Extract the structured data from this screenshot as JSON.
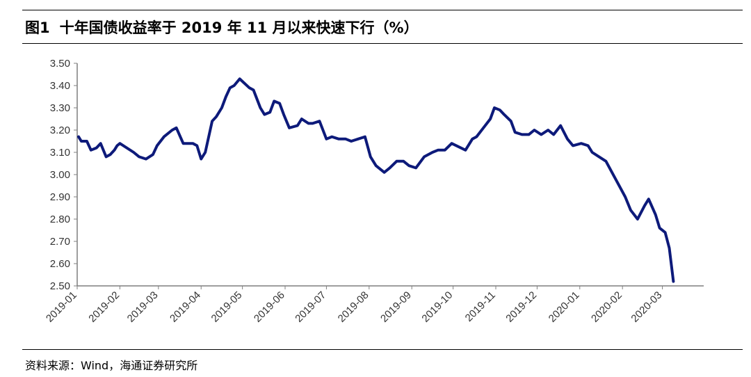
{
  "header": {
    "figure_number": "图1",
    "title": "十年国债收益率于 2019 年 11 月以来快速下行（%）"
  },
  "footer": {
    "source": "资料来源：Wind，海通证券研究所"
  },
  "chart_data": {
    "type": "line",
    "title": "十年国债收益率于 2019 年 11 月以来快速下行（%）",
    "xlabel": "",
    "ylabel": "",
    "ylim": [
      2.5,
      3.5
    ],
    "y_ticks": [
      "3.50",
      "3.40",
      "3.30",
      "3.20",
      "3.10",
      "3.00",
      "2.90",
      "2.80",
      "2.70",
      "2.60",
      "2.50"
    ],
    "x_ticks": [
      "2019-01",
      "2019-02",
      "2019-03",
      "2019-04",
      "2019-05",
      "2019-06",
      "2019-07",
      "2019-08",
      "2019-09",
      "2019-10",
      "2019-11",
      "2019-12",
      "2020-01",
      "2020-02",
      "2020-03"
    ],
    "grid": false,
    "legend": "none",
    "color": "#0d1a7a",
    "series": [
      {
        "x": [
          "2019-01-02",
          "2019-01-04",
          "2019-01-08",
          "2019-01-11",
          "2019-01-15",
          "2019-01-18",
          "2019-01-22",
          "2019-01-25",
          "2019-01-28",
          "2019-01-30",
          "2019-02-01",
          "2019-02-11",
          "2019-02-15",
          "2019-02-20",
          "2019-02-25",
          "2019-02-28",
          "2019-03-05",
          "2019-03-11",
          "2019-03-14",
          "2019-03-19",
          "2019-03-22",
          "2019-03-26",
          "2019-03-29",
          "2019-04-01",
          "2019-04-04",
          "2019-04-09",
          "2019-04-12",
          "2019-04-16",
          "2019-04-19",
          "2019-04-22",
          "2019-04-25",
          "2019-04-29",
          "2019-05-06",
          "2019-05-09",
          "2019-05-14",
          "2019-05-17",
          "2019-05-21",
          "2019-05-24",
          "2019-05-28",
          "2019-05-31",
          "2019-06-04",
          "2019-06-10",
          "2019-06-13",
          "2019-06-18",
          "2019-06-21",
          "2019-06-26",
          "2019-07-01",
          "2019-07-05",
          "2019-07-10",
          "2019-07-15",
          "2019-07-19",
          "2019-07-24",
          "2019-07-29",
          "2019-08-02",
          "2019-08-06",
          "2019-08-12",
          "2019-08-16",
          "2019-08-21",
          "2019-08-26",
          "2019-08-30",
          "2019-09-04",
          "2019-09-10",
          "2019-09-16",
          "2019-09-20",
          "2019-09-25",
          "2019-09-30",
          "2019-10-10",
          "2019-10-15",
          "2019-10-18",
          "2019-10-23",
          "2019-10-28",
          "2019-10-31",
          "2019-11-04",
          "2019-11-07",
          "2019-11-12",
          "2019-11-15",
          "2019-11-20",
          "2019-11-25",
          "2019-11-29",
          "2019-12-04",
          "2019-12-09",
          "2019-12-13",
          "2019-12-18",
          "2019-12-23",
          "2019-12-27",
          "2020-01-02",
          "2020-01-07",
          "2020-01-10",
          "2020-01-15",
          "2020-01-20",
          "2020-02-03",
          "2020-02-07",
          "2020-02-12",
          "2020-02-17",
          "2020-02-20",
          "2020-02-25",
          "2020-02-28",
          "2020-03-03",
          "2020-03-06",
          "2020-03-09"
        ],
        "values": [
          3.17,
          3.15,
          3.15,
          3.11,
          3.12,
          3.14,
          3.08,
          3.09,
          3.11,
          3.13,
          3.14,
          3.1,
          3.08,
          3.07,
          3.09,
          3.13,
          3.17,
          3.2,
          3.21,
          3.14,
          3.14,
          3.14,
          3.13,
          3.07,
          3.1,
          3.24,
          3.26,
          3.3,
          3.35,
          3.39,
          3.4,
          3.43,
          3.39,
          3.38,
          3.3,
          3.27,
          3.28,
          3.33,
          3.32,
          3.27,
          3.21,
          3.22,
          3.25,
          3.23,
          3.23,
          3.24,
          3.16,
          3.17,
          3.16,
          3.16,
          3.15,
          3.16,
          3.17,
          3.08,
          3.04,
          3.01,
          3.03,
          3.06,
          3.06,
          3.04,
          3.03,
          3.08,
          3.1,
          3.11,
          3.11,
          3.14,
          3.11,
          3.16,
          3.17,
          3.21,
          3.25,
          3.3,
          3.29,
          3.27,
          3.24,
          3.19,
          3.18,
          3.18,
          3.2,
          3.18,
          3.2,
          3.18,
          3.22,
          3.16,
          3.13,
          3.14,
          3.13,
          3.1,
          3.08,
          3.06,
          2.9,
          2.84,
          2.8,
          2.86,
          2.89,
          2.82,
          2.76,
          2.74,
          2.67,
          2.52
        ]
      }
    ]
  }
}
